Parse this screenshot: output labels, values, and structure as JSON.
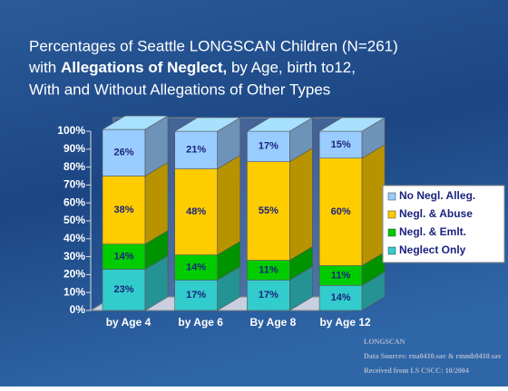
{
  "chart_data": {
    "type": "stacked-bar-3d",
    "title": {
      "line1": "Percentages of Seattle LONGSCAN Children (N=261)",
      "line2": [
        "with ",
        "Allegations of Neglect,",
        " by Age, birth to12,"
      ],
      "line3": "With and Without  Allegations of Other Types"
    },
    "categories": [
      "by Age 4",
      "by Age 6",
      "By Age 8",
      "by Age 12"
    ],
    "series": [
      {
        "name": "Neglect Only",
        "color": "#33cccc",
        "values": [
          23,
          17,
          17,
          14
        ],
        "value_labels": [
          "23%",
          "17%",
          "17%",
          "14%"
        ]
      },
      {
        "name": "Negl. & Emlt.",
        "color": "#00cc00",
        "values": [
          14,
          14,
          11,
          11
        ],
        "value_labels": [
          "14%",
          "14%",
          "11%",
          "11%"
        ]
      },
      {
        "name": "Negl. & Abuse",
        "color": "#ffcc00",
        "values": [
          38,
          48,
          55,
          60
        ],
        "value_labels": [
          "38%",
          "48%",
          "55%",
          "60%"
        ]
      },
      {
        "name": "No Negl. Alleg.",
        "color": "#99ccff",
        "values": [
          26,
          21,
          17,
          15
        ],
        "value_labels": [
          "26%",
          "21%",
          "17%",
          "15%"
        ]
      }
    ],
    "ylim": [
      0,
      100
    ],
    "yticks": [
      {
        "value": 0,
        "label": "0%"
      },
      {
        "value": 10,
        "label": "10%"
      },
      {
        "value": 20,
        "label": "20%"
      },
      {
        "value": 30,
        "label": "30%"
      },
      {
        "value": 40,
        "label": "40%"
      },
      {
        "value": 50,
        "label": "50%"
      },
      {
        "value": 60,
        "label": "60%"
      },
      {
        "value": 70,
        "label": "70%"
      },
      {
        "value": 80,
        "label": "80%"
      },
      {
        "value": 90,
        "label": "90%"
      },
      {
        "value": 100,
        "label": "100%"
      }
    ],
    "legend": "right",
    "source": [
      "LONGSCAN",
      "Data Sources:  rna0410.sav & rmmb0410.sav",
      "Received from LS CSCC:  10/2004"
    ]
  }
}
